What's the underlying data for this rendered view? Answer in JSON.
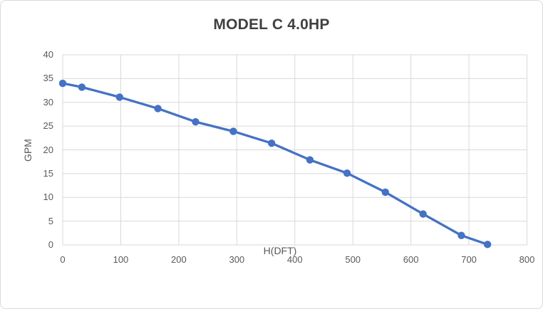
{
  "window": {
    "background": "#ffffff",
    "border_color": "#d9d9d9"
  },
  "chart_data": {
    "type": "line",
    "title": "MODEL C 4.0HP",
    "xlabel": "H(DFT)",
    "ylabel": "GPM",
    "x": [
      0,
      33,
      98,
      164,
      229,
      294,
      360,
      426,
      490,
      556,
      621,
      687,
      732
    ],
    "y": [
      34,
      33.2,
      31.1,
      28.7,
      25.9,
      23.9,
      21.4,
      17.9,
      15.1,
      11.1,
      6.5,
      2.0,
      0.1
    ],
    "xlim": [
      0,
      800
    ],
    "ylim": [
      0,
      40
    ],
    "x_ticks": [
      0,
      100,
      200,
      300,
      400,
      500,
      600,
      700,
      800
    ],
    "y_ticks": [
      0,
      5,
      10,
      15,
      20,
      25,
      30,
      35,
      40
    ],
    "grid": true,
    "legend": false,
    "line_color": "#4472c4",
    "marker": "circle",
    "gridline_color": "#d9d9d9",
    "tick_label_color": "#595959",
    "title_color": "#404040",
    "axis_title_color": "#595959"
  }
}
